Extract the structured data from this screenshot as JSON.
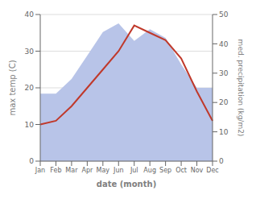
{
  "chart_data": {
    "type": "line",
    "categories": [
      "Jan",
      "Feb",
      "Mar",
      "Apr",
      "May",
      "Jun",
      "Jul",
      "Aug",
      "Sep",
      "Oct",
      "Nov",
      "Dec"
    ],
    "xlabel": "date (month)",
    "ylabel": "max temp (C)",
    "y2label": "med. precipitation (kg/m2)",
    "series": [
      {
        "type": "area",
        "axis": "y2",
        "color": "#b8c4e8",
        "values": [
          23,
          23,
          28,
          36,
          44,
          47,
          41,
          45,
          42,
          33,
          25,
          25
        ]
      },
      {
        "type": "line",
        "axis": "y",
        "color": "#c0392b",
        "values": [
          10,
          11,
          15,
          20,
          25,
          30,
          37,
          35,
          33,
          28,
          19,
          11
        ]
      }
    ],
    "ylim": [
      0,
      40
    ],
    "yticks": [
      0,
      10,
      20,
      30,
      40
    ],
    "y2lim": [
      0,
      50
    ],
    "y2ticks": [
      0,
      10,
      20,
      30,
      40,
      50
    ],
    "grid": true
  }
}
